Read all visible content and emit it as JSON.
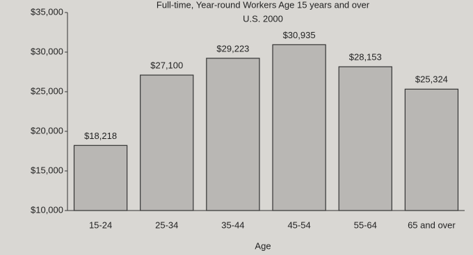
{
  "chart_data": {
    "type": "bar",
    "title": "Full-time, Year-round Workers Age 15 years and over",
    "subtitle": "U.S. 2000",
    "x_label": "Age",
    "categories": [
      "15-24",
      "25-34",
      "35-44",
      "45-54",
      "55-64",
      "65 and over"
    ],
    "values": [
      18218,
      27100,
      29223,
      30935,
      28153,
      25324
    ],
    "value_labels": [
      "$18,218",
      "$27,100",
      "$29,223",
      "$30,935",
      "$28,153",
      "$25,324"
    ],
    "color": "#b9b7b4",
    "ylim": [
      10000,
      35000
    ],
    "yticks": [
      {
        "value": 10000,
        "label": "$10,000"
      },
      {
        "value": 15000,
        "label": "$15,000"
      },
      {
        "value": 20000,
        "label": "$20,000"
      },
      {
        "value": 25000,
        "label": "$25,000"
      },
      {
        "value": 30000,
        "label": "$30,000"
      },
      {
        "value": 35000,
        "label": "$35,000"
      }
    ],
    "grid": false
  }
}
